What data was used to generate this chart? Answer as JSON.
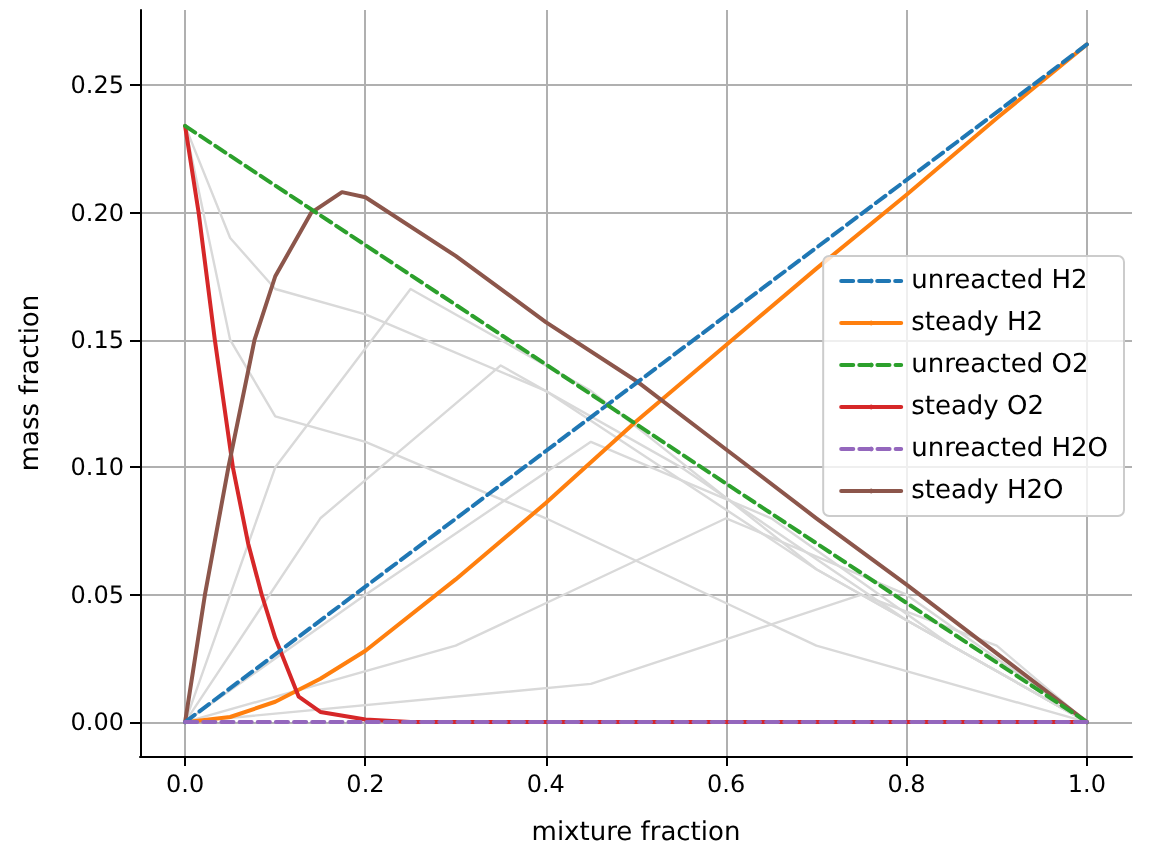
{
  "chart_data": {
    "type": "line",
    "xlabel": "mixture fraction",
    "ylabel": "mass fraction",
    "xlim": [
      -0.05,
      1.05
    ],
    "ylim": [
      -0.0133,
      0.2795
    ],
    "xticks": [
      {
        "value": 0,
        "label": "0.0"
      },
      0.2,
      0.4,
      0.6,
      0.8,
      {
        "value": 1,
        "label": "1.0"
      }
    ],
    "yticks": [
      {
        "value": 0,
        "label": "0.00"
      },
      0.05,
      {
        "value": 0.1,
        "label": "0.10"
      },
      0.15,
      {
        "value": 0.2,
        "label": "0.20"
      },
      0.25
    ],
    "grid": true,
    "legend": "right",
    "marker": "none",
    "series": [
      {
        "color": "#d9d9d9",
        "x": [
          0,
          0.1,
          0.25,
          0.45,
          0.7,
          1
        ],
        "values": [
          0,
          0.1,
          0.17,
          0.13,
          0.06,
          0
        ]
      },
      {
        "color": "#d9d9d9",
        "x": [
          0,
          0.15,
          0.35,
          0.55,
          0.8,
          1
        ],
        "values": [
          0,
          0.08,
          0.14,
          0.1,
          0.04,
          0
        ]
      },
      {
        "color": "#d9d9d9",
        "x": [
          0,
          0.2,
          0.45,
          0.65,
          0.85,
          1
        ],
        "values": [
          0,
          0.05,
          0.11,
          0.08,
          0.03,
          0
        ]
      },
      {
        "color": "#d9d9d9",
        "x": [
          0,
          0.3,
          0.6,
          0.8,
          1
        ],
        "values": [
          0,
          0.03,
          0.08,
          0.05,
          0
        ]
      },
      {
        "color": "#d9d9d9",
        "x": [
          0,
          0.45,
          0.75,
          0.9,
          1
        ],
        "values": [
          0,
          0.015,
          0.05,
          0.03,
          0
        ]
      },
      {
        "color": "#d9d9d9",
        "x": [
          0,
          0.05,
          0.1,
          0.2,
          0.4,
          0.7,
          1
        ],
        "values": [
          0.234,
          0.19,
          0.17,
          0.16,
          0.13,
          0.06,
          0
        ]
      },
      {
        "color": "#d9d9d9",
        "x": [
          0,
          0.05,
          0.1,
          0.2,
          0.4,
          0.7,
          1
        ],
        "values": [
          0.234,
          0.15,
          0.12,
          0.11,
          0.08,
          0.03,
          0
        ]
      },
      {
        "name": "unreacted H2",
        "color": "#1f77b4",
        "line_style": "dashed",
        "x": [
          0,
          1
        ],
        "values": [
          0,
          0.266
        ]
      },
      {
        "name": "steady H2",
        "color": "#ff7f0e",
        "line_style": "solid",
        "x": [
          0,
          0.05,
          0.1,
          0.15,
          0.2,
          0.3,
          0.4,
          0.5,
          0.6,
          0.7,
          0.8,
          0.9,
          1
        ],
        "values": [
          0,
          0.002,
          0.008,
          0.017,
          0.028,
          0.056,
          0.086,
          0.118,
          0.148,
          0.178,
          0.207,
          0.237,
          0.266
        ]
      },
      {
        "name": "unreacted O2",
        "color": "#2ca02c",
        "line_style": "dashed",
        "x": [
          0,
          1
        ],
        "values": [
          0.234,
          0
        ]
      },
      {
        "name": "steady O2",
        "color": "#d62728",
        "line_style": "solid",
        "x": [
          0,
          0.015,
          0.033,
          0.053,
          0.07,
          0.085,
          0.1,
          0.126,
          0.15,
          0.2,
          0.25,
          1
        ],
        "values": [
          0.234,
          0.2,
          0.15,
          0.1,
          0.07,
          0.05,
          0.033,
          0.01,
          0.004,
          0.001,
          0,
          0
        ]
      },
      {
        "name": "unreacted H2O",
        "color": "#9467bd",
        "line_style": "dashed",
        "x": [
          0,
          1
        ],
        "values": [
          0,
          0
        ]
      },
      {
        "name": "steady H2O",
        "color": "#8c564b",
        "line_style": "solid",
        "x": [
          0,
          0.022,
          0.048,
          0.077,
          0.1,
          0.14,
          0.174,
          0.2,
          0.3,
          0.4,
          0.5,
          0.6,
          0.7,
          0.8,
          0.9,
          1
        ],
        "values": [
          0,
          0.05,
          0.1,
          0.15,
          0.175,
          0.2,
          0.208,
          0.206,
          0.183,
          0.157,
          0.134,
          0.107,
          0.08,
          0.054,
          0.027,
          0
        ]
      }
    ]
  }
}
